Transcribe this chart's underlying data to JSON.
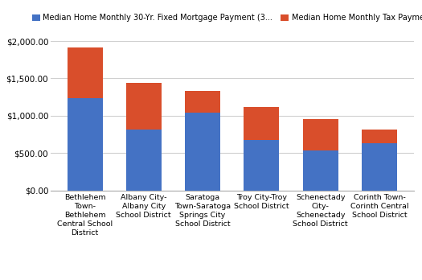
{
  "categories": [
    "Bethlehem\nTown-\nBethlehem\nCentral School\nDistrict",
    "Albany City-\nAlbany City\nSchool District",
    "Saratoga\nTown-Saratoga\nSprings City\nSchool District",
    "Troy City-Troy\nSchool District",
    "Schenectady\nCity-\nSchenectady\nSchool District",
    "Corinth Town-\nCorinth Central\nSchool District"
  ],
  "mortgage_values": [
    1240,
    820,
    1045,
    670,
    535,
    635
  ],
  "tax_values": [
    670,
    620,
    290,
    445,
    415,
    175
  ],
  "mortgage_color": "#4472C4",
  "tax_color": "#D94E2B",
  "legend_mortgage": "Median Home Monthly 30-Yr. Fixed Mortgage Payment (3...",
  "legend_tax": "Median Home Monthly Tax Payment",
  "ylim": [
    0,
    2100
  ],
  "yticks": [
    0,
    500,
    1000,
    1500,
    2000
  ],
  "ytick_labels": [
    "$0.00",
    "$500.00",
    "$1,000.00",
    "$1,500.00",
    "$2,000.00"
  ],
  "background_color": "#ffffff",
  "grid_color": "#d0d0d0",
  "bar_width": 0.6,
  "figsize": [
    5.25,
    3.48
  ],
  "dpi": 100
}
